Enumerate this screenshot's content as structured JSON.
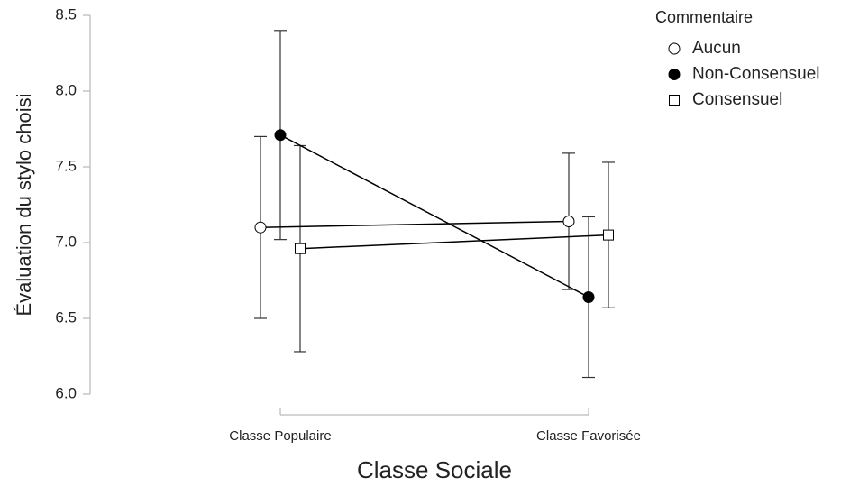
{
  "chart_data": {
    "type": "line",
    "x_label": "Classe Sociale",
    "y_label": "Évaluation du stylo choisi",
    "categories": [
      "Classe Populaire",
      "Classe Favorisée"
    ],
    "legend_title": "Commentaire",
    "legend_position": "right",
    "series": [
      {
        "name": "Aucun",
        "color": "#000000",
        "marker": "circle",
        "marker_fill": "#ffffff",
        "values": [
          7.1,
          7.14
        ],
        "errors": [
          0.6,
          0.45
        ]
      },
      {
        "name": "Non-Consensuel",
        "color": "#000000",
        "marker": "circle",
        "marker_fill": "#000000",
        "values": [
          7.71,
          6.64
        ],
        "errors": [
          0.69,
          0.53
        ]
      },
      {
        "name": "Consensuel",
        "color": "#000000",
        "marker": "square",
        "marker_fill": "#ffffff",
        "values": [
          6.96,
          7.05
        ],
        "errors": [
          0.68,
          0.48
        ]
      }
    ],
    "ylim": [
      6,
      8.5
    ],
    "yticks": [
      {
        "value": 6,
        "label": "6.0"
      },
      6.5,
      {
        "value": 7,
        "label": "7.0"
      },
      7.5,
      {
        "value": 8,
        "label": "8.0"
      },
      8.5
    ],
    "grid": false
  }
}
